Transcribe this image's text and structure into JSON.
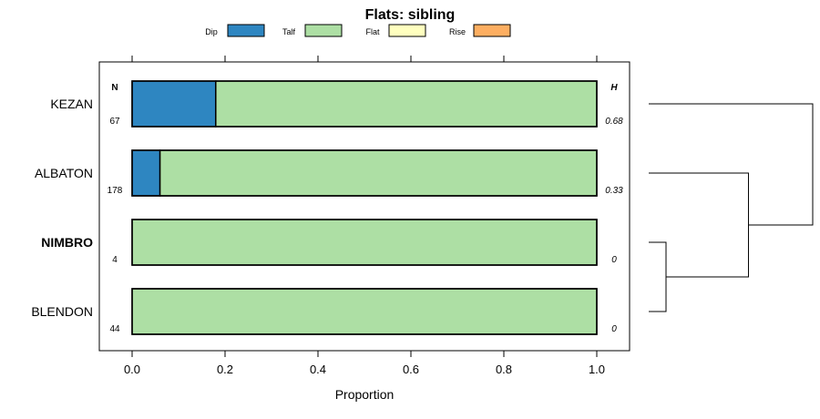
{
  "chart_data": {
    "type": "bar",
    "orientation": "horizontal",
    "stacked": true,
    "title": "Flats: sibling",
    "xlabel": "Proportion",
    "ylabel": "",
    "xlim": [
      -0.07,
      1.07
    ],
    "xticks": [
      {
        "value": 0.0,
        "label": "0.0"
      },
      {
        "value": 0.2,
        "label": "0.2"
      },
      {
        "value": 0.4,
        "label": "0.4"
      },
      {
        "value": 0.6,
        "label": "0.6"
      },
      {
        "value": 0.8,
        "label": "0.8"
      },
      {
        "value": 1.0,
        "label": "1.0"
      }
    ],
    "categories": [
      "KEZAN",
      "ALBATON",
      "NIMBRO",
      "BLENDON"
    ],
    "highlighted": "NIMBRO",
    "series": [
      {
        "name": "Dip",
        "color": "#2e86c1",
        "values": [
          0.18,
          0.06,
          0.0,
          0.0
        ]
      },
      {
        "name": "Talf",
        "color": "#addfa4",
        "values": [
          0.82,
          0.94,
          1.0,
          1.0
        ]
      },
      {
        "name": "Flat",
        "color": "#ffffbf",
        "values": [
          0.0,
          0.0,
          0.0,
          0.0
        ]
      },
      {
        "name": "Rise",
        "color": "#fdae61",
        "values": [
          0.0,
          0.0,
          0.0,
          0.0
        ]
      }
    ],
    "n_header": "N",
    "n_values": [
      "67",
      "178",
      "4",
      "44"
    ],
    "h_header": "H",
    "h_values": [
      "0.68",
      "0.33",
      "0",
      "0"
    ],
    "legend_position": "top",
    "dendrogram": {
      "leaves": [
        "KEZAN",
        "ALBATON",
        "NIMBRO",
        "BLENDON"
      ],
      "merges": [
        {
          "left": 2,
          "right": 3,
          "height": 0.0
        },
        {
          "left": 1,
          "right": 4,
          "height": 0.33
        },
        {
          "left": 0,
          "right": 5,
          "height": 0.68
        }
      ],
      "max_height": 0.68
    }
  }
}
